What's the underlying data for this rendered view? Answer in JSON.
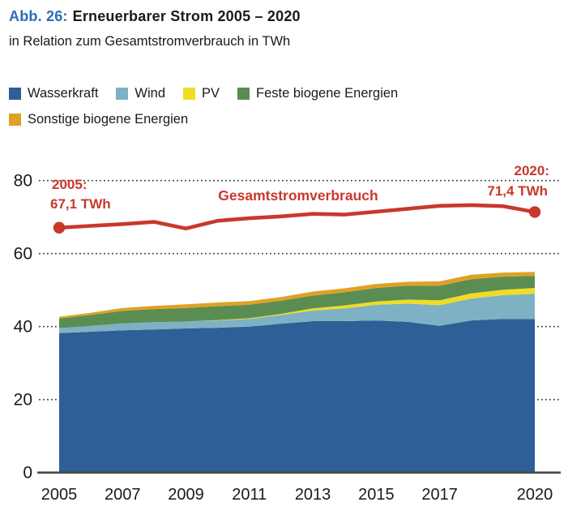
{
  "header": {
    "fig_label": "Abb. 26:",
    "title": "Erneuerbarer Strom 2005 – 2020",
    "subtitle": "in Relation zum Gesamtstromverbrauch in TWh"
  },
  "colors": {
    "accent_blue": "#2a6db6",
    "consumption_red": "#c8382d",
    "axis_line": "#4a4a4a",
    "grid_dots": "#3a3a3a",
    "tick_text": "#1a1a1a"
  },
  "legend": {
    "items": [
      {
        "key": "wasserkraft",
        "label": "Wasserkraft",
        "color": "#2e5f96"
      },
      {
        "key": "wind",
        "label": "Wind",
        "color": "#7fb1c4"
      },
      {
        "key": "pv",
        "label": "PV",
        "color": "#f0dc25"
      },
      {
        "key": "feste-biogene",
        "label": "Feste biogene Energien",
        "color": "#5b8d52"
      },
      {
        "key": "sonstige-biogene",
        "label": "Sonstige biogene Energien",
        "color": "#dfa125"
      }
    ]
  },
  "chart_data": {
    "type": "area",
    "stacked": true,
    "title": "Erneuerbarer Strom 2005 – 2020",
    "xlabel": "",
    "ylabel": "TWh",
    "ylim": [
      0,
      85
    ],
    "grid": "dotted-horizontal",
    "x": [
      2005,
      2006,
      2007,
      2008,
      2009,
      2010,
      2011,
      2012,
      2013,
      2014,
      2015,
      2016,
      2017,
      2018,
      2019,
      2020
    ],
    "yticks": [
      0,
      20,
      40,
      60,
      80
    ],
    "xtick_labels": [
      "2005",
      "2007",
      "2009",
      "2011",
      "2013",
      "2015",
      "2017",
      "2020"
    ],
    "xtick_years": [
      2005,
      2007,
      2009,
      2011,
      2013,
      2015,
      2017,
      2020
    ],
    "series": [
      {
        "key": "wasserkraft",
        "name": "Wasserkraft",
        "color": "#2e5f96",
        "values": [
          38.2,
          38.6,
          39.0,
          39.2,
          39.5,
          39.7,
          40.0,
          40.8,
          41.5,
          41.5,
          41.7,
          41.3,
          40.2,
          41.7,
          42.1,
          42.1
        ]
      },
      {
        "key": "wind",
        "name": "Wind",
        "color": "#7fb1c4",
        "values": [
          1.4,
          1.6,
          1.9,
          2.0,
          1.9,
          2.0,
          2.1,
          2.4,
          2.9,
          3.5,
          4.3,
          5.0,
          5.7,
          6.0,
          6.5,
          6.9
        ]
      },
      {
        "key": "pv",
        "name": "PV",
        "color": "#f0dc25",
        "values": [
          0.0,
          0.0,
          0.0,
          0.0,
          0.0,
          0.1,
          0.2,
          0.3,
          0.6,
          0.8,
          0.9,
          1.1,
          1.3,
          1.4,
          1.5,
          1.6
        ]
      },
      {
        "key": "feste-biogene",
        "name": "Feste biogene Energien",
        "color": "#5b8d52",
        "values": [
          2.6,
          3.0,
          3.4,
          3.6,
          3.7,
          3.8,
          3.7,
          3.6,
          3.5,
          3.6,
          3.7,
          3.8,
          4.0,
          3.9,
          3.6,
          3.3
        ]
      },
      {
        "key": "sonstige-biogene",
        "name": "Sonstige biogene Energien",
        "color": "#dfa125",
        "values": [
          0.5,
          0.6,
          0.8,
          0.9,
          1.0,
          1.0,
          1.0,
          1.0,
          1.1,
          1.1,
          1.1,
          1.1,
          1.2,
          1.2,
          1.1,
          1.1
        ]
      }
    ],
    "line": {
      "key": "gesamtstromverbrauch",
      "name": "Gesamtstromverbrauch",
      "color": "#c8382d",
      "endpoints": true,
      "values": [
        67.1,
        67.6,
        68.1,
        68.7,
        66.9,
        69.0,
        69.7,
        70.2,
        70.9,
        70.7,
        71.5,
        72.3,
        73.1,
        73.3,
        73.0,
        71.4
      ]
    },
    "annotations": {
      "start_year": "2005:",
      "start_value": "67,1 TWh",
      "line_label": "Gesamtstromverbrauch",
      "end_year": "2020:",
      "end_value": "71,4 TWh"
    }
  }
}
